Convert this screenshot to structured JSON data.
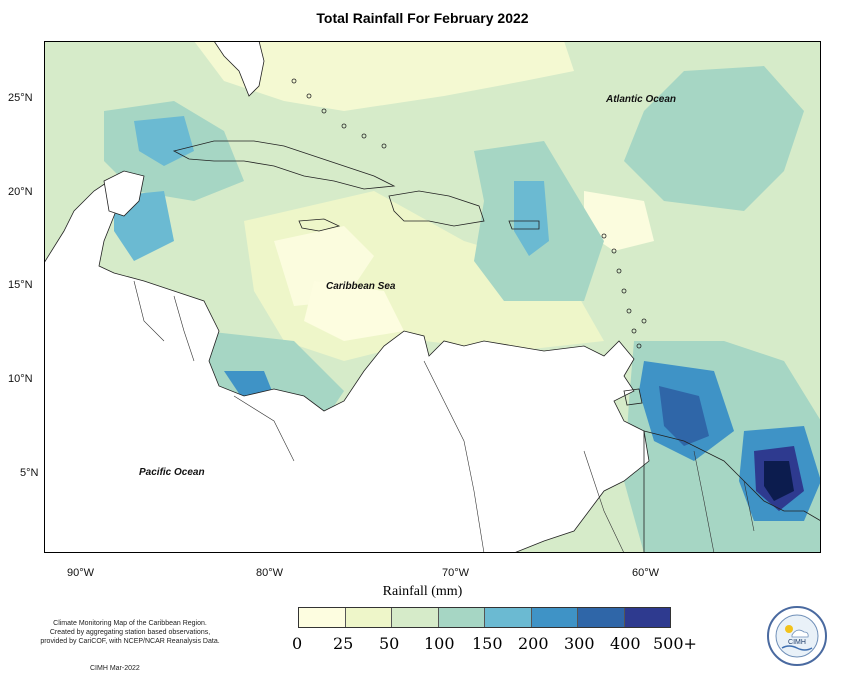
{
  "title": "Total Rainfall For February 2022",
  "map": {
    "y_ticks": [
      "25°N",
      "20°N",
      "15°N",
      "10°N",
      "5°N"
    ],
    "x_ticks": [
      "90°W",
      "80°W",
      "70°W",
      "60°W"
    ],
    "ocean_labels": {
      "atlantic": "Atlantic Ocean",
      "caribbean": "Caribbean Sea",
      "pacific": "Pacific Ocean"
    }
  },
  "legend": {
    "title": "Rainfall (mm)",
    "ticks": [
      "0",
      "25",
      "50",
      "100",
      "150",
      "200",
      "300",
      "400",
      "500+"
    ],
    "colors": [
      "#fdfde0",
      "#eef6c9",
      "#d6ebc9",
      "#a6d6c4",
      "#6bbad2",
      "#3f93c6",
      "#2f66a8",
      "#2e3a8f",
      "#0c1c4e"
    ]
  },
  "footer": {
    "note_lines": [
      "Climate Monitoring Map of the Caribbean Region.",
      "Created by aggregating station based observations,",
      "provided by CariCOF, with NCEP/NCAR Reanalysis Data."
    ],
    "credit": "CIMH Mar-2022",
    "logo_text": "CIMH"
  }
}
